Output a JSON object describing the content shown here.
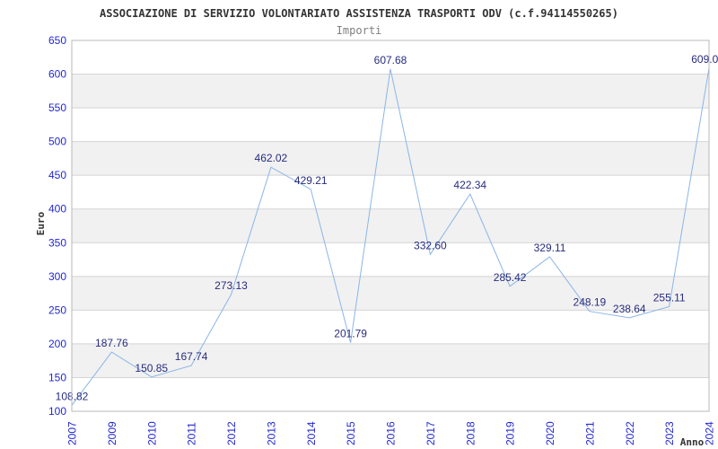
{
  "chart": {
    "title": "ASSOCIAZIONE DI SERVIZIO VOLONTARIATO ASSISTENZA TRASPORTI ODV (c.f.94114550265)",
    "subtitle": "Importi",
    "ylabel": "Euro",
    "xlabel": "Anno"
  },
  "chart_data": {
    "type": "line",
    "title": "ASSOCIAZIONE DI SERVIZIO VOLONTARIATO ASSISTENZA TRASPORTI ODV (c.f.94114550265)",
    "subtitle": "Importi",
    "xlabel": "Anno",
    "ylabel": "Euro",
    "categories": [
      "2007",
      "2009",
      "2010",
      "2011",
      "2012",
      "2013",
      "2014",
      "2015",
      "2016",
      "2017",
      "2018",
      "2019",
      "2020",
      "2021",
      "2022",
      "2023",
      "2024"
    ],
    "values": [
      108.82,
      187.76,
      150.85,
      167.74,
      273.13,
      462.02,
      429.21,
      201.79,
      607.68,
      332.6,
      422.34,
      285.42,
      329.11,
      248.19,
      238.64,
      255.11,
      609.0
    ],
    "point_labels": [
      "108.82",
      "187.76",
      "150.85",
      "167.74",
      "273.13",
      "462.02",
      "429.21",
      "201.79",
      "607.68",
      "332.60",
      "422.34",
      "285.42",
      "329.11",
      "248.19",
      "238.64",
      "255.11",
      "609.0"
    ],
    "ylim": [
      100,
      650
    ],
    "ytick_step": 50,
    "grid": "horizontal",
    "bands": "alternating",
    "legend": "none",
    "colors": {
      "line": "#8ab5e8",
      "tick_label": "#2328cf",
      "point_label": "#272c7d",
      "band": "#f1f1f1",
      "gridline": "#d4d4d4",
      "border": "#b8b8b8",
      "title": "#333333",
      "subtitle": "#7f7f7f",
      "axis_title": "#333333",
      "background": "#ffffff"
    }
  }
}
